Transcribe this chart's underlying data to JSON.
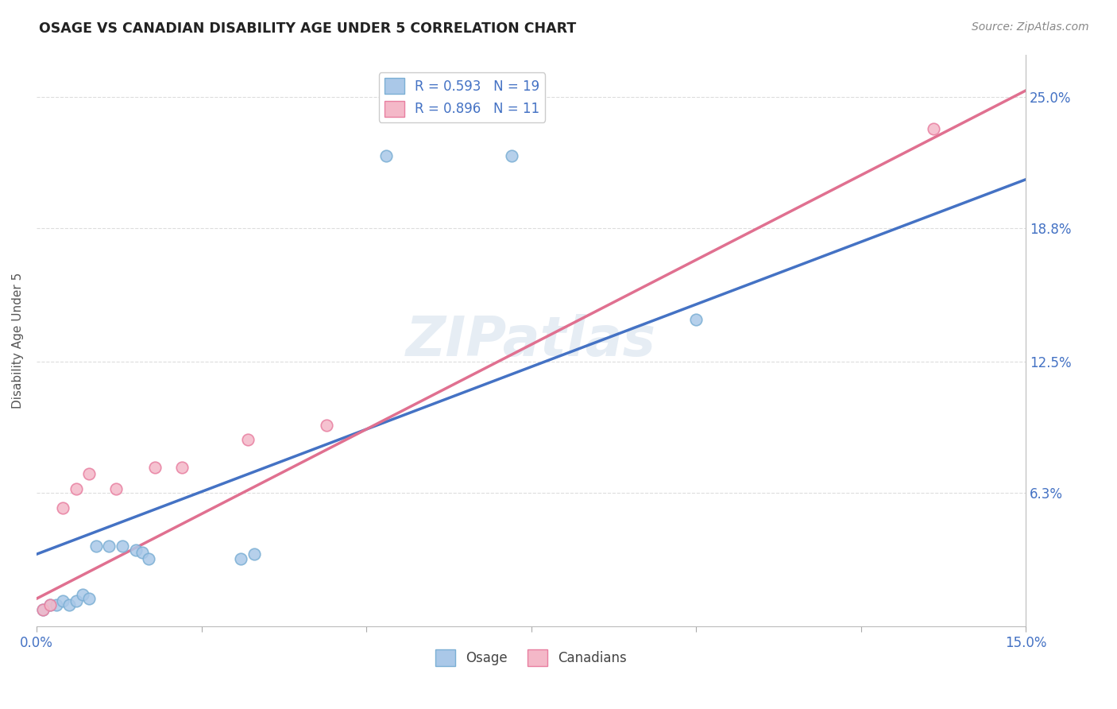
{
  "title": "OSAGE VS CANADIAN DISABILITY AGE UNDER 5 CORRELATION CHART",
  "source": "Source: ZipAtlas.com",
  "ylabel": "Disability Age Under 5",
  "xlim": [
    0.0,
    0.15
  ],
  "ylim": [
    0.0,
    0.27
  ],
  "xticks": [
    0.0,
    0.025,
    0.05,
    0.075,
    0.1,
    0.125,
    0.15
  ],
  "xticklabels": [
    "0.0%",
    "",
    "",
    "",
    "",
    "",
    "15.0%"
  ],
  "ytick_positions": [
    0.0,
    0.063,
    0.125,
    0.188,
    0.25
  ],
  "yticklabels": [
    "",
    "6.3%",
    "12.5%",
    "18.8%",
    "25.0%"
  ],
  "osage_x": [
    0.001,
    0.002,
    0.003,
    0.004,
    0.005,
    0.006,
    0.007,
    0.008,
    0.009,
    0.011,
    0.013,
    0.015,
    0.016,
    0.017,
    0.031,
    0.033,
    0.053,
    0.072,
    0.1
  ],
  "osage_y": [
    0.008,
    0.01,
    0.01,
    0.012,
    0.01,
    0.012,
    0.015,
    0.013,
    0.038,
    0.038,
    0.038,
    0.036,
    0.035,
    0.032,
    0.032,
    0.034,
    0.222,
    0.222,
    0.145
  ],
  "canadian_x": [
    0.001,
    0.002,
    0.004,
    0.006,
    0.008,
    0.012,
    0.018,
    0.022,
    0.032,
    0.044,
    0.136
  ],
  "canadian_y": [
    0.008,
    0.01,
    0.056,
    0.065,
    0.072,
    0.065,
    0.075,
    0.075,
    0.088,
    0.095,
    0.235
  ],
  "osage_color": "#aac8e8",
  "osage_edge_color": "#7bafd4",
  "canadian_color": "#f4b8c8",
  "canadian_edge_color": "#e87fa0",
  "trendline_osage_color": "#4472c4",
  "trendline_canadian_color": "#e07090",
  "trendline_osage_intercept": 0.034,
  "trendline_osage_slope": 1.18,
  "trendline_canadian_intercept": 0.013,
  "trendline_canadian_slope": 1.6,
  "R_osage": "0.593",
  "N_osage": "19",
  "R_canadian": "0.896",
  "N_canadian": "11",
  "watermark": "ZIPatlas",
  "grid_color": "#dddddd",
  "background_color": "#ffffff",
  "right_axis_color": "#4472c4",
  "marker_size": 110
}
